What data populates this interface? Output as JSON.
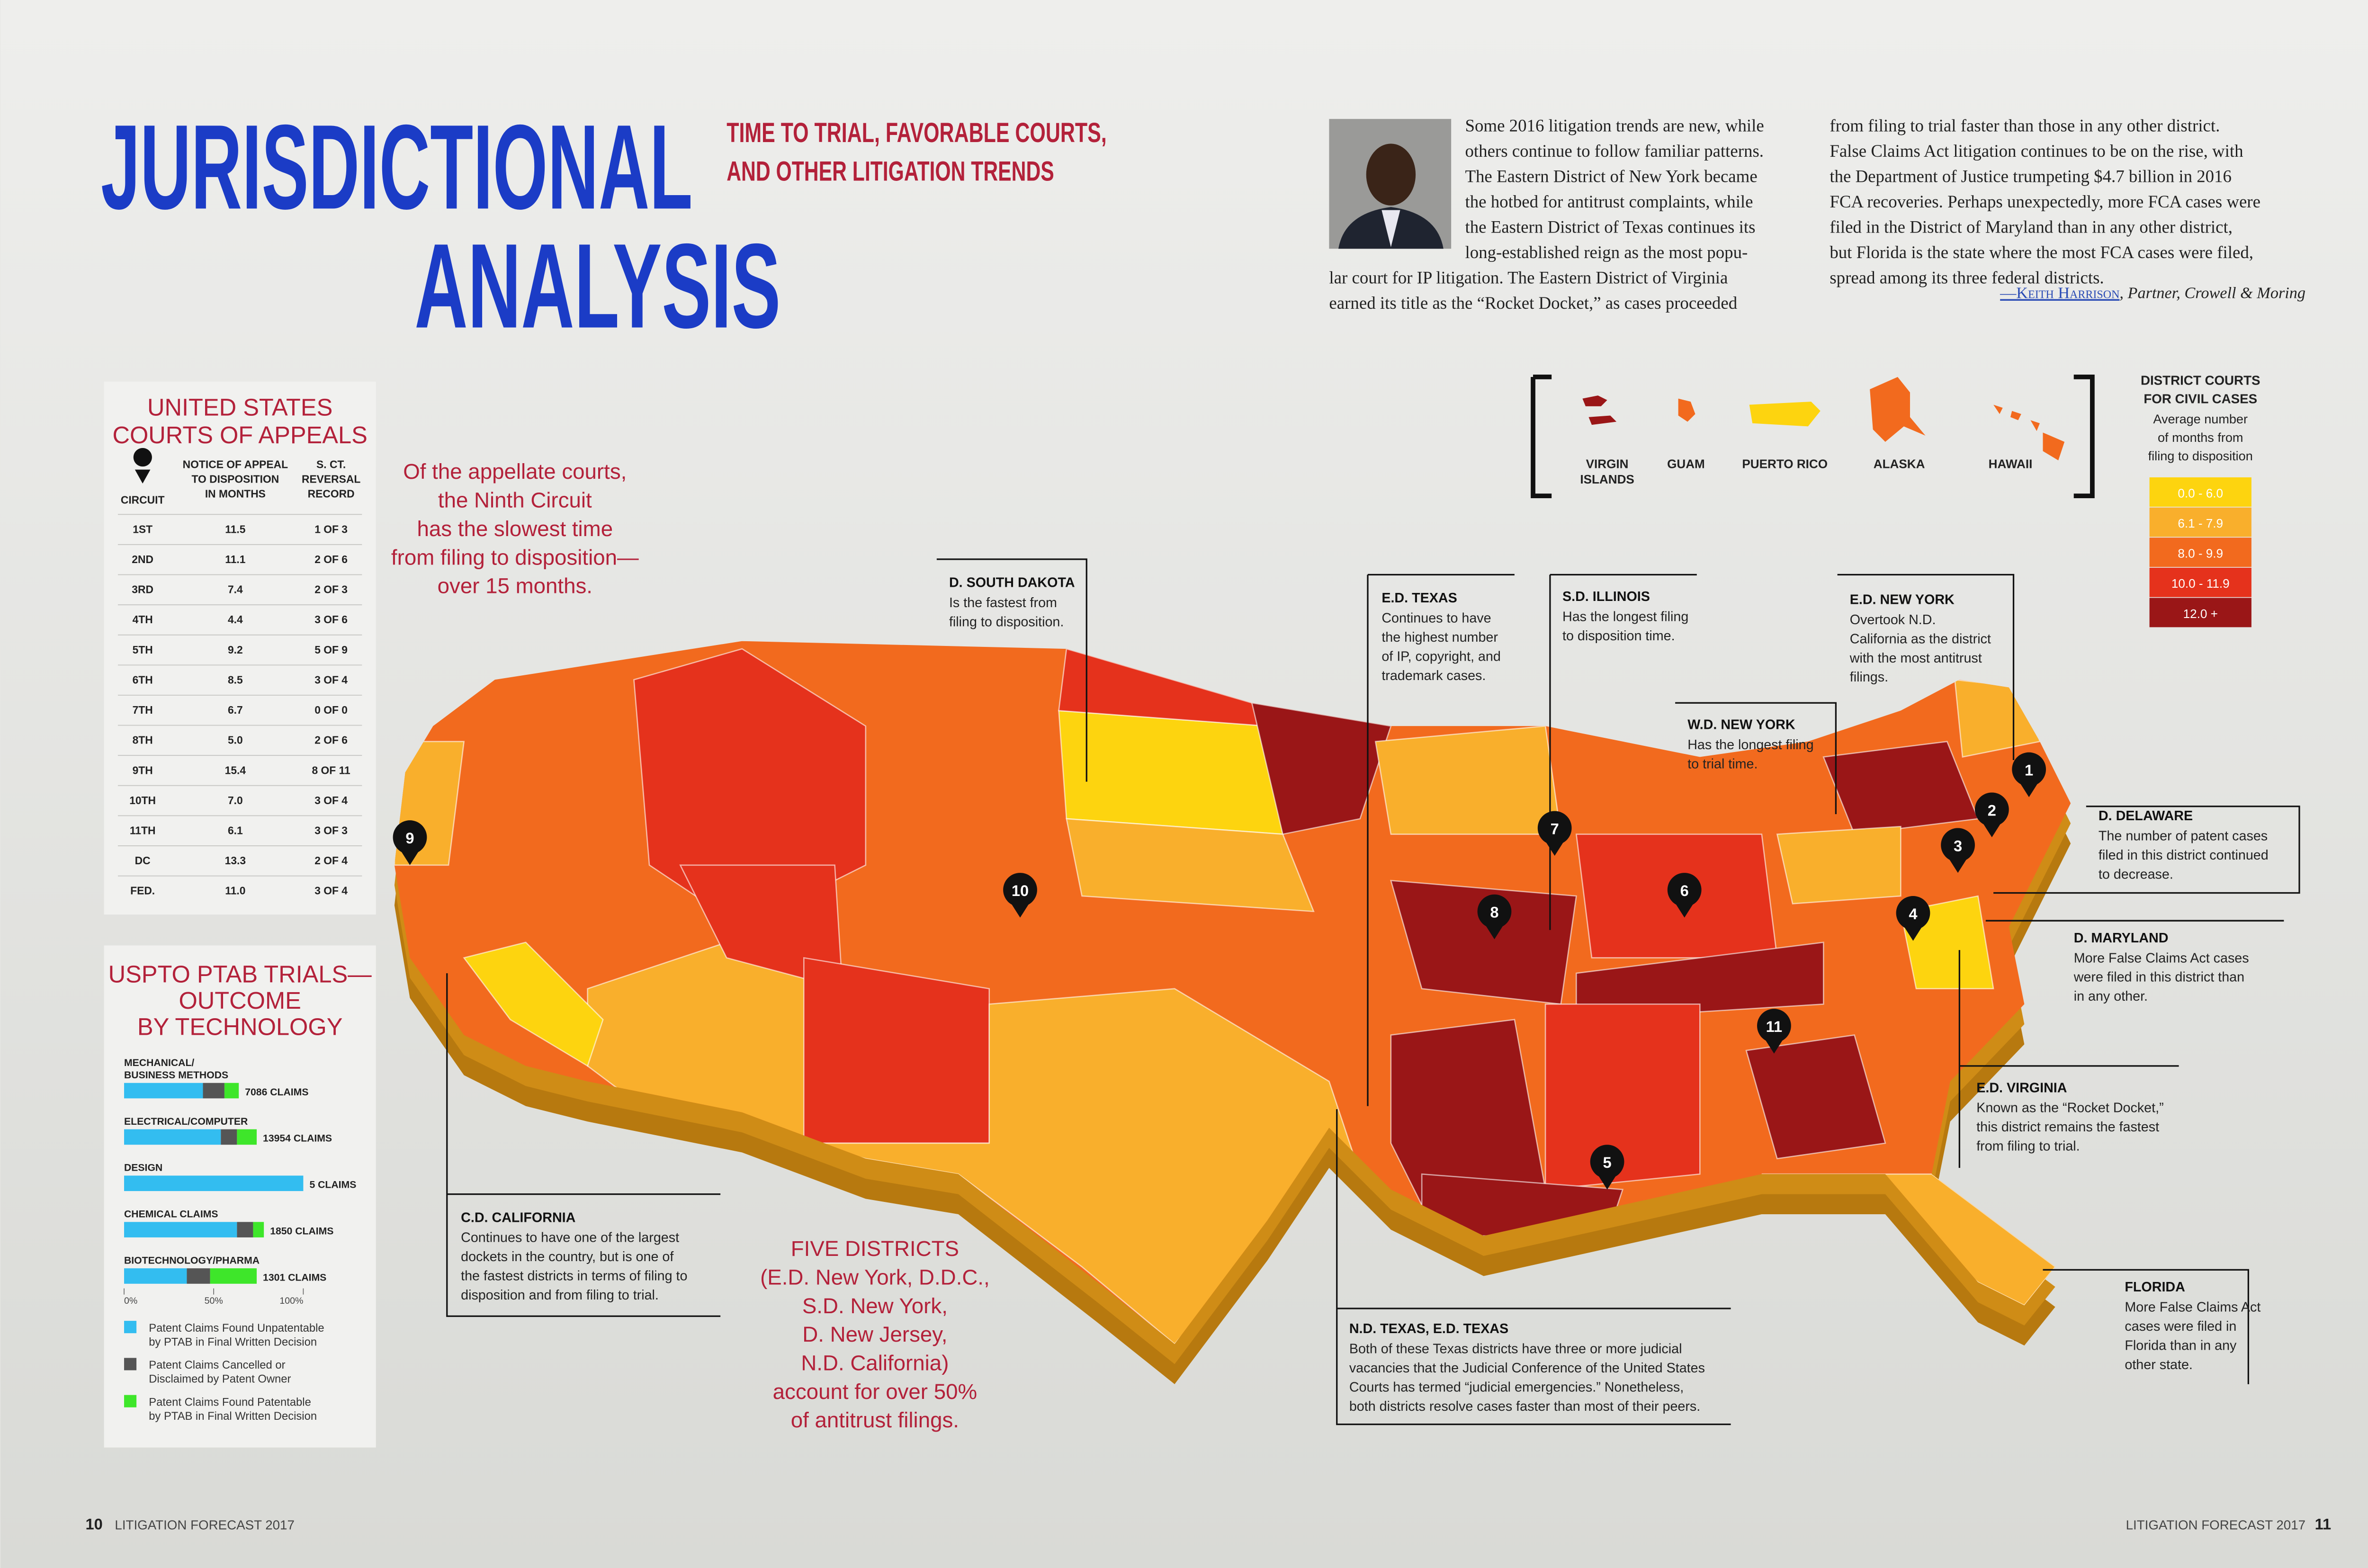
{
  "header": {
    "title_line1": "JURISDICTIONAL",
    "title_line2": "ANALYSIS",
    "subtitle_line1": "TIME TO TRIAL, FAVORABLE COURTS,",
    "subtitle_line2": "AND OTHER LITIGATION TRENDS"
  },
  "intro": {
    "col1": [
      "Some 2016 litigation trends are new, while",
      "others continue to follow familiar patterns.",
      "The Eastern District of New York became",
      "the hotbed for antitrust complaints, while",
      "the Eastern District of Texas continues its",
      "long-established reign as the most popu-",
      "lar court for IP litigation. The Eastern District of Virginia",
      "earned its title as the “Rocket Docket,” as cases proceeded"
    ],
    "col2": [
      "from filing to trial faster than those in any other district.",
      "False Claims Act litigation continues to be on the rise, with",
      "the Department of Justice trumpeting $4.7 billion in 2016",
      "FCA recoveries. Perhaps unexpectedly, more FCA cases were",
      "filed in the District of Maryland than in any other district,",
      "but Florida is the state where the most FCA cases were filed,",
      "spread among its three federal districts."
    ],
    "signature_name": "—Keith Harrison",
    "signature_role": ", Partner, Crowell & Moring"
  },
  "appeals": {
    "title": [
      "UNITED STATES",
      "COURTS OF APPEALS"
    ],
    "headers": [
      [
        "CIRCUIT"
      ],
      [
        "NOTICE OF APPEAL",
        "TO DISPOSITION",
        "IN MONTHS"
      ],
      [
        "S. CT.",
        "REVERSAL",
        "RECORD"
      ]
    ],
    "rows": [
      [
        "1ST",
        "11.5",
        "1 OF 3"
      ],
      [
        "2ND",
        "11.1",
        "2 OF 6"
      ],
      [
        "3RD",
        "7.4",
        "2 OF 3"
      ],
      [
        "4TH",
        "4.4",
        "3 OF 6"
      ],
      [
        "5TH",
        "9.2",
        "5 OF 9"
      ],
      [
        "6TH",
        "8.5",
        "3 OF 4"
      ],
      [
        "7TH",
        "6.7",
        "0 OF 0"
      ],
      [
        "8TH",
        "5.0",
        "2 OF 6"
      ],
      [
        "9TH",
        "15.4",
        "8 OF 11"
      ],
      [
        "10TH",
        "7.0",
        "3 OF 4"
      ],
      [
        "11TH",
        "6.1",
        "3 OF 3"
      ],
      [
        "DC",
        "13.3",
        "2 OF 4"
      ],
      [
        "FED.",
        "11.0",
        "3 OF 4"
      ]
    ]
  },
  "appellate_quote": [
    "Of the appellate courts,",
    "the Ninth Circuit",
    "has the slowest time",
    "from filing to disposition—",
    "over 15 months."
  ],
  "ptab": {
    "title": [
      "USPTO PTAB TRIALS—",
      "OUTCOME",
      "BY TECHNOLOGY"
    ],
    "categories": [
      {
        "name": [
          "MECHANICAL/",
          "BUSINESS METHODS"
        ],
        "claims": "7086 CLAIMS",
        "values": [
          44,
          12,
          8
        ]
      },
      {
        "name": [
          "ELECTRICAL/COMPUTER"
        ],
        "claims": "13954 CLAIMS",
        "values": [
          54,
          9,
          11
        ]
      },
      {
        "name": [
          "DESIGN"
        ],
        "claims": "5 CLAIMS",
        "values": [
          100,
          0,
          0
        ]
      },
      {
        "name": [
          "CHEMICAL CLAIMS"
        ],
        "claims": "1850 CLAIMS",
        "values": [
          63,
          9,
          6
        ]
      },
      {
        "name": [
          "BIOTECHNOLOGY/PHARMA"
        ],
        "claims": "1301 CLAIMS",
        "values": [
          35,
          13,
          26
        ]
      }
    ],
    "axis_ticks": [
      {
        "value": 0,
        "label": "0%"
      },
      {
        "value": 50,
        "label": "50%"
      },
      {
        "value": 100,
        "label": "100%"
      }
    ],
    "xlim": [
      0,
      100
    ],
    "legend": [
      {
        "label": [
          "Patent Claims Found Unpatentable",
          "by PTAB in Final Written Decision"
        ],
        "color": "#33bdf0"
      },
      {
        "label": [
          "Patent Claims Cancelled or",
          "Disclaimed by Patent Owner"
        ],
        "color": "#555555"
      },
      {
        "label": [
          "Patent Claims Found Patentable",
          "by PTAB in Final Written Decision"
        ],
        "color": "#3ee62a"
      }
    ]
  },
  "territories": [
    [
      "VIRGIN",
      "ISLANDS"
    ],
    [
      "GUAM"
    ],
    [
      "PUERTO RICO"
    ],
    [
      "ALASKA"
    ],
    [
      "HAWAII"
    ]
  ],
  "map_legend": {
    "title": [
      "DISTRICT COURTS",
      "FOR CIVIL CASES"
    ],
    "description": [
      "Average number",
      "of months from",
      "filing to disposition"
    ],
    "bins": [
      {
        "label": "0.0 - 6.0",
        "color": "#fdd40f"
      },
      {
        "label": "6.1 - 7.9",
        "color": "#f9af2c"
      },
      {
        "label": "8.0 - 9.9",
        "color": "#f26a1e"
      },
      {
        "label": "10.0 - 11.9",
        "color": "#e5321c"
      },
      {
        "label": "12.0 +",
        "color": "#9a1617"
      }
    ]
  },
  "markers": [
    "1",
    "2",
    "3",
    "4",
    "5",
    "6",
    "7",
    "8",
    "9",
    "10",
    "11"
  ],
  "callouts": [
    {
      "title": "D. SOUTH DAKOTA",
      "text": [
        "Is the fastest from",
        "filing to disposition."
      ]
    },
    {
      "title": "E.D. TEXAS",
      "text": [
        "Continues to have",
        "the highest number",
        "of IP, copyright, and",
        "trademark cases."
      ]
    },
    {
      "title": "S.D. ILLINOIS",
      "text": [
        "Has the longest filing",
        "to disposition time."
      ]
    },
    {
      "title": "E.D. NEW YORK",
      "text": [
        "Overtook N.D.",
        "California as the district",
        "with the most antitrust",
        "filings."
      ]
    },
    {
      "title": "W.D. NEW YORK",
      "text": [
        "Has the longest filing",
        "to trial time."
      ]
    },
    {
      "title": "D. DELAWARE",
      "text": [
        "The number of patent cases",
        "filed in this district continued",
        "to decrease."
      ]
    },
    {
      "title": "D. MARYLAND",
      "text": [
        "More False Claims Act cases",
        "were filed in this district than",
        "in any other."
      ]
    },
    {
      "title": "E.D. VIRGINIA",
      "text": [
        "Known as the “Rocket Docket,”",
        "this district remains the fastest",
        "from filing to trial."
      ]
    },
    {
      "title": "FLORIDA",
      "text": [
        "More False Claims Act",
        "cases were filed in",
        "Florida than in any",
        "other state."
      ]
    },
    {
      "title": "C.D. CALIFORNIA",
      "text": [
        "Continues to have one of the largest",
        "dockets in the country, but is one of",
        "the fastest districts in terms of filing to",
        "disposition and from filing to trial."
      ]
    },
    {
      "title": "N.D. TEXAS, E.D. TEXAS",
      "text": [
        "Both of these Texas districts have three or more judicial",
        "vacancies that the Judicial Conference of the United States",
        "Courts has termed “judicial emergencies.” Nonetheless,",
        "both districts resolve cases faster than most of their peers."
      ]
    }
  ],
  "antitrust_quote": [
    "FIVE DISTRICTS",
    "(E.D. New York, D.D.C.,",
    "S.D. New York,",
    "D. New Jersey,",
    "N.D. California)",
    "account for over 50%",
    "of antitrust filings."
  ],
  "footer": {
    "left_page": "10",
    "left_title": "LITIGATION FORECAST 2017",
    "right_title": "LITIGATION FORECAST 2017",
    "right_page": "11"
  }
}
